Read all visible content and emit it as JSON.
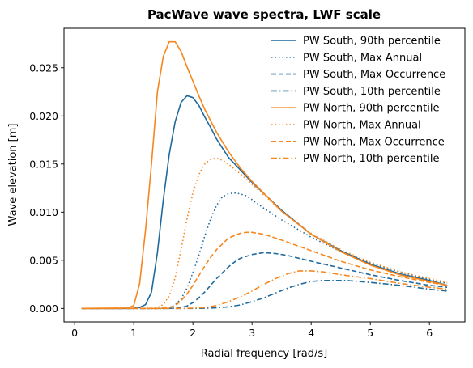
{
  "chart_data": {
    "type": "line",
    "title": "PacWave wave spectra, LWF scale",
    "xlabel": "Radial frequency [rad/s]",
    "ylabel": "Wave elevation [m]",
    "xlim": [
      -0.18,
      6.6
    ],
    "ylim": [
      -0.0014,
      0.0291
    ],
    "xticks": [
      0,
      1,
      2,
      3,
      4,
      5,
      6
    ],
    "yticks": [
      0.0,
      0.005,
      0.01,
      0.015,
      0.02,
      0.025
    ],
    "ytick_labels": [
      "0.000",
      "0.005",
      "0.010",
      "0.015",
      "0.020",
      "0.025"
    ],
    "grid": false,
    "legend_position": "upper-right",
    "colors": {
      "south": "#1f6a9e",
      "north": "#f7861d"
    },
    "series": [
      {
        "name": "PW South, 90th percentile",
        "color": "#1f6a9e",
        "dash": "solid",
        "x": [
          0.12,
          0.9,
          1.0,
          1.1,
          1.2,
          1.3,
          1.4,
          1.5,
          1.6,
          1.7,
          1.8,
          1.9,
          2.0,
          2.1,
          2.2,
          2.3,
          2.4,
          2.6,
          2.8,
          3.0,
          3.5,
          4.0,
          4.5,
          5.0,
          5.5,
          6.0,
          6.3
        ],
        "y": [
          0,
          0,
          2e-05,
          0.0001,
          0.0004,
          0.0017,
          0.0058,
          0.0113,
          0.016,
          0.0194,
          0.0214,
          0.0221,
          0.0219,
          0.0211,
          0.0199,
          0.0188,
          0.0176,
          0.0157,
          0.0144,
          0.0131,
          0.0102,
          0.0077,
          0.006,
          0.0046,
          0.0036,
          0.0029,
          0.0024
        ]
      },
      {
        "name": "PW South, Max Annual",
        "color": "#1f6a9e",
        "dash": "dotted",
        "x": [
          0.12,
          1.3,
          1.4,
          1.5,
          1.6,
          1.7,
          1.8,
          1.9,
          2.0,
          2.1,
          2.2,
          2.3,
          2.4,
          2.5,
          2.6,
          2.7,
          2.8,
          2.9,
          3.0,
          3.2,
          3.5,
          4.0,
          4.5,
          5.0,
          5.5,
          6.0,
          6.3
        ],
        "y": [
          0,
          0,
          1e-05,
          3e-05,
          0.0001,
          0.00035,
          0.001,
          0.0021,
          0.0037,
          0.0055,
          0.0075,
          0.0093,
          0.0107,
          0.0116,
          0.0119,
          0.012,
          0.0119,
          0.0117,
          0.0113,
          0.0104,
          0.0092,
          0.0074,
          0.0059,
          0.0047,
          0.0038,
          0.003,
          0.0026
        ]
      },
      {
        "name": "PW South, Max Occurrence",
        "color": "#1f6a9e",
        "dash": "dashed",
        "x": [
          0.12,
          1.5,
          1.7,
          1.8,
          1.9,
          2.0,
          2.1,
          2.2,
          2.3,
          2.4,
          2.5,
          2.6,
          2.7,
          2.8,
          3.0,
          3.2,
          3.4,
          3.6,
          3.8,
          4.0,
          4.5,
          5.0,
          5.5,
          6.0,
          6.3
        ],
        "y": [
          0,
          0,
          3e-05,
          0.0001,
          0.00025,
          0.0006,
          0.0011,
          0.0017,
          0.0024,
          0.0031,
          0.0037,
          0.0043,
          0.0048,
          0.0052,
          0.0056,
          0.0058,
          0.0057,
          0.0055,
          0.0052,
          0.0049,
          0.0042,
          0.0035,
          0.0029,
          0.0024,
          0.0022
        ]
      },
      {
        "name": "PW South, 10th percentile",
        "color": "#1f6a9e",
        "dash": "dashdot",
        "x": [
          0.12,
          2.0,
          2.2,
          2.4,
          2.6,
          2.8,
          3.0,
          3.2,
          3.4,
          3.6,
          3.8,
          4.0,
          4.2,
          4.4,
          4.6,
          5.0,
          5.5,
          6.0,
          6.3
        ],
        "y": [
          0,
          0,
          2e-05,
          6e-05,
          0.00016,
          0.00036,
          0.0007,
          0.0011,
          0.0016,
          0.0021,
          0.0025,
          0.0028,
          0.0029,
          0.0029,
          0.0029,
          0.0027,
          0.0024,
          0.002,
          0.0018
        ]
      },
      {
        "name": "PW North, 90th percentile",
        "color": "#f7861d",
        "dash": "solid",
        "x": [
          0.12,
          0.9,
          1.0,
          1.1,
          1.2,
          1.3,
          1.4,
          1.5,
          1.6,
          1.7,
          1.8,
          1.9,
          2.0,
          2.1,
          2.2,
          2.3,
          2.4,
          2.6,
          2.8,
          3.0,
          3.5,
          4.0,
          4.5,
          5.0,
          5.5,
          6.0,
          6.3
        ],
        "y": [
          0,
          5e-05,
          0.0003,
          0.0026,
          0.0082,
          0.015,
          0.0225,
          0.0262,
          0.0277,
          0.0277,
          0.0267,
          0.0251,
          0.0236,
          0.0221,
          0.0207,
          0.0195,
          0.0183,
          0.0163,
          0.0146,
          0.0132,
          0.0101,
          0.0077,
          0.0059,
          0.0045,
          0.0035,
          0.0028,
          0.0024
        ]
      },
      {
        "name": "PW North, Max Annual",
        "color": "#f7861d",
        "dash": "dotted",
        "x": [
          0.12,
          1.3,
          1.4,
          1.5,
          1.6,
          1.7,
          1.8,
          1.9,
          2.0,
          2.1,
          2.2,
          2.3,
          2.4,
          2.5,
          2.6,
          2.8,
          3.0,
          3.5,
          4.0,
          4.5,
          5.0,
          5.5,
          6.0,
          6.3
        ],
        "y": [
          0,
          2e-05,
          0.0001,
          0.0004,
          0.0013,
          0.0032,
          0.0061,
          0.0093,
          0.012,
          0.0139,
          0.015,
          0.0155,
          0.0156,
          0.0154,
          0.015,
          0.014,
          0.0129,
          0.0101,
          0.0078,
          0.0061,
          0.0048,
          0.0038,
          0.0031,
          0.0027
        ]
      },
      {
        "name": "PW North, Max Occurrence",
        "color": "#f7861d",
        "dash": "dashed",
        "x": [
          0.12,
          1.4,
          1.5,
          1.6,
          1.7,
          1.8,
          1.9,
          2.0,
          2.1,
          2.2,
          2.3,
          2.4,
          2.6,
          2.8,
          2.9,
          3.0,
          3.2,
          3.5,
          4.0,
          4.5,
          5.0,
          5.5,
          6.0,
          6.3
        ],
        "y": [
          0,
          0,
          3e-05,
          0.0001,
          0.0003,
          0.0008,
          0.0015,
          0.0024,
          0.0034,
          0.0044,
          0.0053,
          0.0061,
          0.0073,
          0.0078,
          0.0079,
          0.0079,
          0.0077,
          0.0071,
          0.006,
          0.0049,
          0.004,
          0.0033,
          0.0027,
          0.0024
        ]
      },
      {
        "name": "PW North, 10th percentile",
        "color": "#f7861d",
        "dash": "dashdot",
        "x": [
          0.12,
          1.8,
          2.0,
          2.2,
          2.4,
          2.6,
          2.8,
          3.0,
          3.2,
          3.4,
          3.6,
          3.8,
          4.0,
          4.2,
          4.5,
          5.0,
          5.5,
          6.0,
          6.3
        ],
        "y": [
          0,
          0,
          3e-05,
          0.0001,
          0.0003,
          0.0007,
          0.0012,
          0.0018,
          0.0025,
          0.0031,
          0.0036,
          0.0039,
          0.0039,
          0.0038,
          0.0035,
          0.0031,
          0.0026,
          0.0022,
          0.002
        ]
      }
    ]
  }
}
